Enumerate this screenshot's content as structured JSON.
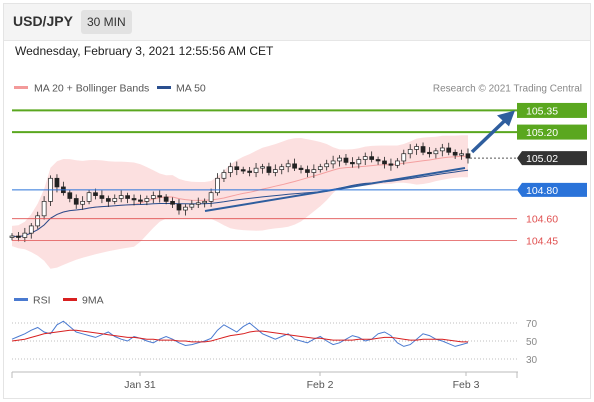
{
  "header": {
    "pair": "USD/JPY",
    "timeframe": "30 MIN"
  },
  "datetime": "Wednesday, February 3, 2021 12:55:56 AM CET",
  "legend": {
    "ma20": "MA 20 + Bollinger Bands",
    "ma50": "MA 50",
    "copyright": "Research © 2021 Trading Central"
  },
  "rsi_legend": {
    "rsi": "RSI",
    "ma9": "9MA"
  },
  "colors": {
    "resistance": "#5aa71f",
    "support_blue": "#2a73d9",
    "support_red": "#e05050",
    "current": "#333333",
    "bollinger": "#fbd6d6",
    "ma50": "#2a4f8f",
    "arrow": "#2f5e9e"
  },
  "chart_data": [
    {
      "type": "candlestick",
      "title": "USD/JPY 30 MIN",
      "x_ticks": [
        "Jan 31",
        "Feb 2",
        "Feb 3"
      ],
      "y_range": [
        104.3,
        105.45
      ],
      "levels": [
        {
          "label": "105.35",
          "value": 105.35,
          "kind": "resistance"
        },
        {
          "label": "105.20",
          "value": 105.2,
          "kind": "resistance"
        },
        {
          "label": "105.02",
          "value": 105.02,
          "kind": "current"
        },
        {
          "label": "104.80",
          "value": 104.8,
          "kind": "support"
        },
        {
          "label": "104.60",
          "value": 104.6,
          "kind": "support_minor"
        },
        {
          "label": "104.45",
          "value": 104.45,
          "kind": "support_minor"
        }
      ],
      "closes": [
        104.48,
        104.47,
        104.5,
        104.55,
        104.62,
        104.72,
        104.88,
        104.82,
        104.78,
        104.74,
        104.7,
        104.72,
        104.78,
        104.76,
        104.74,
        104.72,
        104.74,
        104.76,
        104.74,
        104.73,
        104.72,
        104.74,
        104.76,
        104.75,
        104.72,
        104.7,
        104.66,
        104.68,
        104.7,
        104.71,
        104.72,
        104.78,
        104.88,
        104.92,
        104.96,
        104.94,
        104.93,
        104.92,
        104.95,
        104.96,
        104.92,
        104.94,
        104.96,
        104.98,
        104.95,
        104.94,
        104.92,
        104.94,
        104.96,
        104.98,
        105.0,
        105.02,
        104.99,
        104.98,
        105.01,
        105.03,
        105.01,
        105.0,
        104.98,
        104.97,
        105.0,
        105.05,
        105.08,
        105.1,
        105.06,
        105.05,
        105.07,
        105.09,
        105.06,
        105.04,
        105.05,
        105.02
      ]
    },
    {
      "type": "line",
      "title": "RSI",
      "y_ticks": [
        70,
        50,
        30
      ],
      "y_range": [
        20,
        80
      ],
      "series": [
        {
          "name": "RSI",
          "color": "#4a7ad0",
          "values": [
            52,
            55,
            58,
            62,
            65,
            60,
            58,
            68,
            72,
            66,
            60,
            58,
            56,
            54,
            57,
            60,
            55,
            52,
            50,
            55,
            53,
            50,
            48,
            52,
            55,
            52,
            48,
            45,
            46,
            48,
            50,
            53,
            62,
            68,
            64,
            60,
            66,
            70,
            64,
            58,
            55,
            52,
            55,
            58,
            52,
            50,
            48,
            52,
            55,
            50,
            46,
            48,
            52,
            56,
            54,
            50,
            52,
            58,
            60,
            56,
            48,
            44,
            46,
            52,
            58,
            56,
            52,
            50,
            47,
            44,
            46,
            48
          ]
        },
        {
          "name": "9MA",
          "color": "#d82020",
          "values": [
            50,
            51,
            52,
            54,
            56,
            58,
            59,
            60,
            61,
            62,
            62,
            61,
            60,
            59,
            58,
            57,
            56,
            55,
            54,
            54,
            53,
            52,
            52,
            51,
            51,
            51,
            50,
            50,
            49,
            49,
            49,
            50,
            52,
            54,
            56,
            57,
            58,
            60,
            61,
            61,
            60,
            59,
            58,
            57,
            56,
            55,
            54,
            53,
            53,
            52,
            51,
            51,
            51,
            51,
            52,
            52,
            52,
            53,
            54,
            54,
            53,
            52,
            51,
            51,
            52,
            52,
            52,
            52,
            51,
            50,
            49,
            49
          ]
        }
      ]
    }
  ]
}
